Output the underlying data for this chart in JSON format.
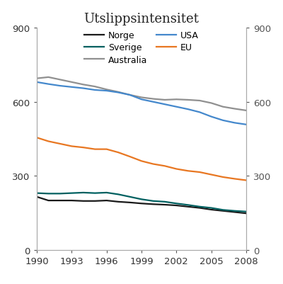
{
  "title": "Utslippsintensitet",
  "years": [
    1990,
    1991,
    1992,
    1993,
    1994,
    1995,
    1996,
    1997,
    1998,
    1999,
    2000,
    2001,
    2002,
    2003,
    2004,
    2005,
    2006,
    2007,
    2008
  ],
  "series": {
    "Norge": [
      215,
      200,
      200,
      200,
      198,
      198,
      200,
      195,
      192,
      188,
      185,
      183,
      180,
      175,
      170,
      163,
      158,
      153,
      148
    ],
    "Sverige": [
      230,
      228,
      228,
      230,
      232,
      230,
      232,
      225,
      215,
      205,
      198,
      195,
      188,
      182,
      175,
      170,
      162,
      158,
      155
    ],
    "Australia": [
      695,
      700,
      690,
      680,
      670,
      662,
      650,
      640,
      628,
      618,
      612,
      608,
      610,
      608,
      605,
      595,
      580,
      572,
      565
    ],
    "USA": [
      680,
      672,
      665,
      660,
      655,
      648,
      645,
      638,
      628,
      610,
      600,
      590,
      580,
      570,
      558,
      540,
      525,
      515,
      508
    ],
    "EU": [
      455,
      440,
      430,
      420,
      415,
      408,
      408,
      395,
      378,
      360,
      348,
      340,
      328,
      320,
      315,
      305,
      295,
      288,
      282
    ]
  },
  "colors": {
    "Norge": "#1a1a1a",
    "Sverige": "#006060",
    "Australia": "#909090",
    "USA": "#4488CC",
    "EU": "#E87722"
  },
  "ylim": [
    0,
    900
  ],
  "yticks": [
    0,
    300,
    600,
    900
  ],
  "xticks": [
    1990,
    1993,
    1996,
    1999,
    2002,
    2005,
    2008
  ],
  "background_color": "#ffffff",
  "linewidth": 1.6,
  "spine_color": "#aaaaaa",
  "tick_color": "#555555",
  "legend_order_col1": [
    "Norge",
    "Australia",
    "EU"
  ],
  "legend_order_col2": [
    "Sverige",
    "USA"
  ]
}
